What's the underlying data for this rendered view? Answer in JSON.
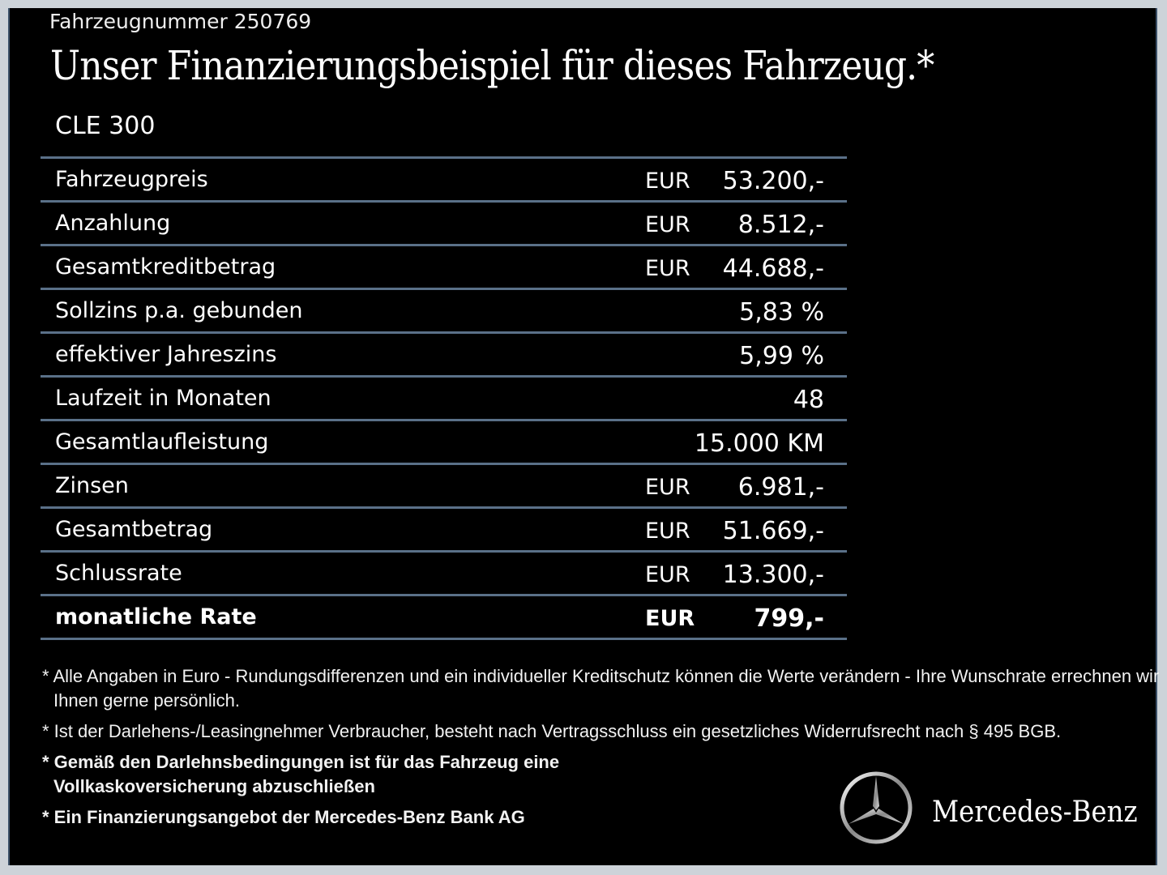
{
  "vehicle_number": "Fahrzeugnummer 250769",
  "title": "Unser Finanzierungsbeispiel für dieses Fahrzeug.*",
  "model": "CLE 300",
  "rows": [
    {
      "label": "Fahrzeugpreis",
      "currency": "EUR",
      "value": "53.200,-"
    },
    {
      "label": "Anzahlung",
      "currency": "EUR",
      "value": "8.512,-"
    },
    {
      "label": "Gesamtkreditbetrag",
      "currency": "EUR",
      "value": "44.688,-"
    },
    {
      "label": "Sollzins p.a. gebunden",
      "currency": "",
      "value": "5,83 %"
    },
    {
      "label": "effektiver Jahreszins",
      "currency": "",
      "value": "5,99 %"
    },
    {
      "label": "Laufzeit in Monaten",
      "currency": "",
      "value": "48"
    },
    {
      "label": "Gesamtlaufleistung",
      "currency": "",
      "value": "15.000 KM"
    },
    {
      "label": "Zinsen",
      "currency": "EUR",
      "value": "6.981,-"
    },
    {
      "label": "Gesamtbetrag",
      "currency": "EUR",
      "value": "51.669,-"
    },
    {
      "label": "Schlussrate",
      "currency": "EUR",
      "value": "13.300,-"
    },
    {
      "label": "monatliche Rate",
      "currency": "EUR",
      "value": "799,-"
    }
  ],
  "notes": [
    "* Alle Angaben in Euro - Rundungsdifferenzen und ein individueller Kreditschutz können die Werte verändern - Ihre Wunschrate errechnen wir Ihnen gerne persönlich.",
    "* Ist der Darlehens-/Leasingnehmer Verbraucher, besteht nach Vertragsschluss ein gesetzliches Widerrufsrecht nach § 495 BGB.",
    "* Gemäß den Darlehnsbedingungen ist für das Fahrzeug eine Vollkaskoversicherung abzuschließen",
    "* Ein Finanzierungsangebot der Mercedes-Benz Bank AG"
  ],
  "brand": "Mercedes-Benz",
  "colors": {
    "background": "#000000",
    "frame": "#cdd3d9",
    "divider": "#5a7088"
  }
}
